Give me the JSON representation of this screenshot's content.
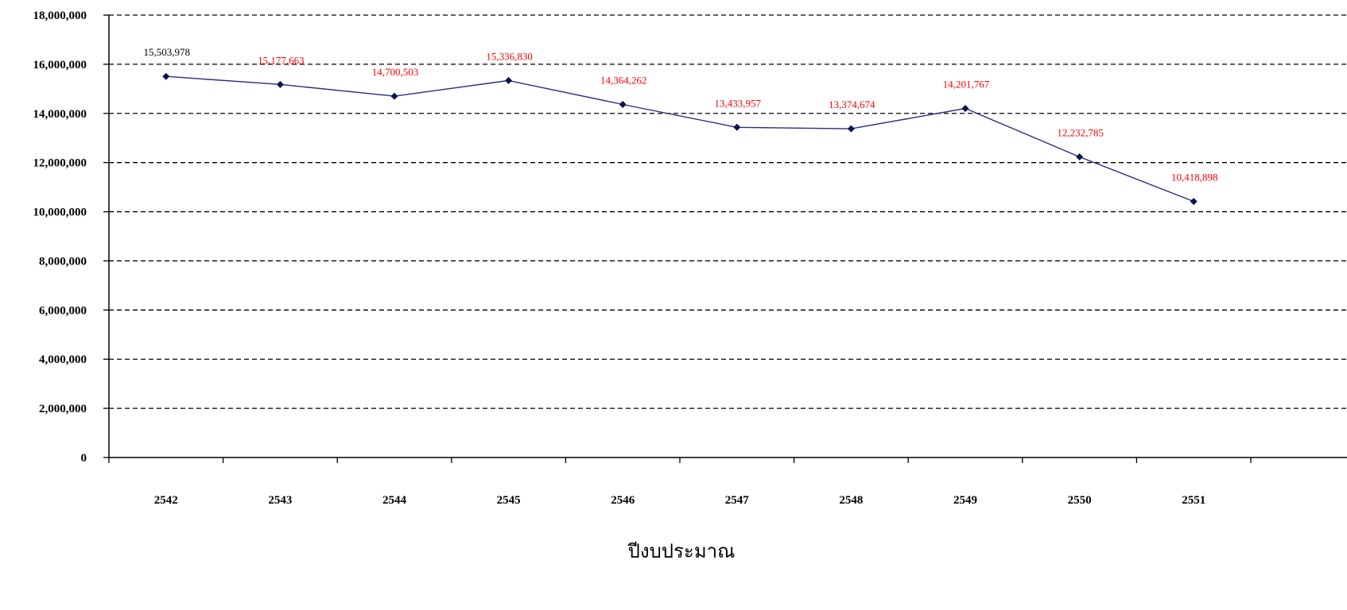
{
  "chart_data": {
    "type": "line",
    "categories": [
      "2542",
      "2543",
      "2544",
      "2545",
      "2546",
      "2547",
      "2548",
      "2549",
      "2550",
      "2551"
    ],
    "series": [
      {
        "values": [
          15503978,
          15177663,
          14700503,
          15336830,
          14364262,
          13433957,
          13374674,
          14201767,
          12232785,
          10418898
        ],
        "color": "#2b2f7a",
        "marker": "diamond",
        "marker_color": "#0a1450"
      }
    ],
    "data_labels": [
      "15,503,978",
      "15,177,663",
      "14,700,503",
      "15,336,830",
      "14,364,262",
      "13,433,957",
      "13,374,674",
      "14,201,767",
      "12,232,785",
      "10,418,898"
    ],
    "data_label_colors": [
      "#000000",
      "#ff0000",
      "#ff0000",
      "#ff0000",
      "#ff0000",
      "#ff0000",
      "#ff0000",
      "#ff0000",
      "#ff0000",
      "#ff0000"
    ],
    "yticks": [
      0,
      2000000,
      4000000,
      6000000,
      8000000,
      10000000,
      12000000,
      14000000,
      16000000,
      18000000
    ],
    "ytick_labels": [
      "0",
      "2,000,000",
      "4,000,000",
      "6,000,000",
      "8,000,000",
      "10,000,000",
      "12,000,000",
      "14,000,000",
      "16,000,000",
      "18,000,000"
    ],
    "ylim": [
      0,
      18000000
    ],
    "xlabel": "ปีงบประมาณ",
    "ylabel": "",
    "title": "",
    "grid": "horizontal dashed",
    "legend": "none"
  }
}
